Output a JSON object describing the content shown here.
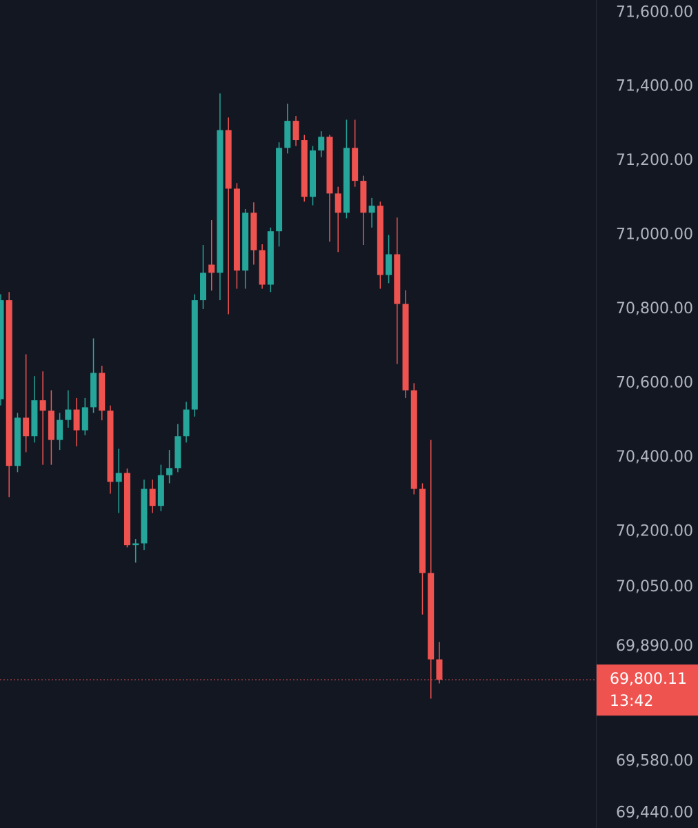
{
  "chart_data": {
    "type": "candlestick",
    "up_color": "#26a69a",
    "down_color": "#ef5350",
    "grid": false,
    "ylim": [
      69400,
      71634
    ],
    "yticks": [
      {
        "value": 71600,
        "label": "71,600.00"
      },
      {
        "value": 71400,
        "label": "71,400.00"
      },
      {
        "value": 71200,
        "label": "71,200.00"
      },
      {
        "value": 71000,
        "label": "71,000.00"
      },
      {
        "value": 70800,
        "label": "70,800.00"
      },
      {
        "value": 70600,
        "label": "70,600.00"
      },
      {
        "value": 70400,
        "label": "70,400.00"
      },
      {
        "value": 70200,
        "label": "70,200.00"
      },
      {
        "value": 70050,
        "label": "70,050.00"
      },
      {
        "value": 69890,
        "label": "69,890.00"
      },
      {
        "value": 69580,
        "label": "69,580.00"
      },
      {
        "value": 69440,
        "label": "69,440.00"
      }
    ],
    "last_price": {
      "value": 69800.11,
      "label": "69,800.11"
    },
    "countdown": "13:42",
    "open": [
      70557,
      70824,
      70377,
      70507,
      70457,
      70554,
      70526,
      70447,
      70501,
      70529,
      70473,
      70535,
      70628,
      70526,
      70334,
      70358,
      70163,
      70168,
      70315,
      70269,
      70352,
      70371,
      70457,
      70529,
      70824,
      70920,
      70898,
      71283,
      71125,
      70904,
      71060,
      70959,
      70866,
      71010,
      71235,
      71308,
      71256,
      71103,
      71228,
      71265,
      71112,
      71060,
      71235,
      71146,
      71060,
      71079,
      70892,
      70948,
      70814,
      70581,
      70315,
      70088,
      69855
    ],
    "high": [
      70840,
      70846,
      70520,
      70678,
      70619,
      70632,
      70581,
      70520,
      70581,
      70560,
      70560,
      70721,
      70647,
      70540,
      70423,
      70370,
      70180,
      70340,
      70340,
      70380,
      70420,
      70490,
      70550,
      70840,
      70973,
      71040,
      71382,
      71317,
      71140,
      71070,
      71088,
      70975,
      71020,
      71250,
      71354,
      71321,
      71270,
      71240,
      71280,
      71270,
      71130,
      71311,
      71311,
      71160,
      71100,
      71090,
      71000,
      71047,
      70851,
      70600,
      70330,
      70447,
      69902
    ],
    "low": [
      70540,
      70293,
      70360,
      70414,
      70440,
      70380,
      70380,
      70420,
      70480,
      70430,
      70460,
      70520,
      70500,
      70302,
      70250,
      70157,
      70116,
      70150,
      70250,
      70255,
      70330,
      70360,
      70440,
      70510,
      70800,
      70850,
      70824,
      70786,
      70855,
      70855,
      70920,
      70855,
      70846,
      70969,
      71220,
      71240,
      71090,
      71080,
      71210,
      70982,
      70954,
      71045,
      71130,
      70973,
      71020,
      70855,
      70870,
      70652,
      70560,
      70300,
      69976,
      69749,
      69790
    ],
    "close": [
      70824,
      70377,
      70507,
      70457,
      70554,
      70526,
      70447,
      70501,
      70529,
      70473,
      70535,
      70628,
      70526,
      70334,
      70358,
      70163,
      70168,
      70315,
      70269,
      70352,
      70371,
      70457,
      70529,
      70824,
      70898,
      70898,
      71283,
      71125,
      70904,
      71060,
      70959,
      70866,
      71010,
      71235,
      71308,
      71256,
      71103,
      71228,
      71265,
      71112,
      71060,
      71235,
      71146,
      71060,
      71079,
      70892,
      70948,
      70814,
      70581,
      70315,
      70088,
      69855,
      69800.11
    ]
  }
}
